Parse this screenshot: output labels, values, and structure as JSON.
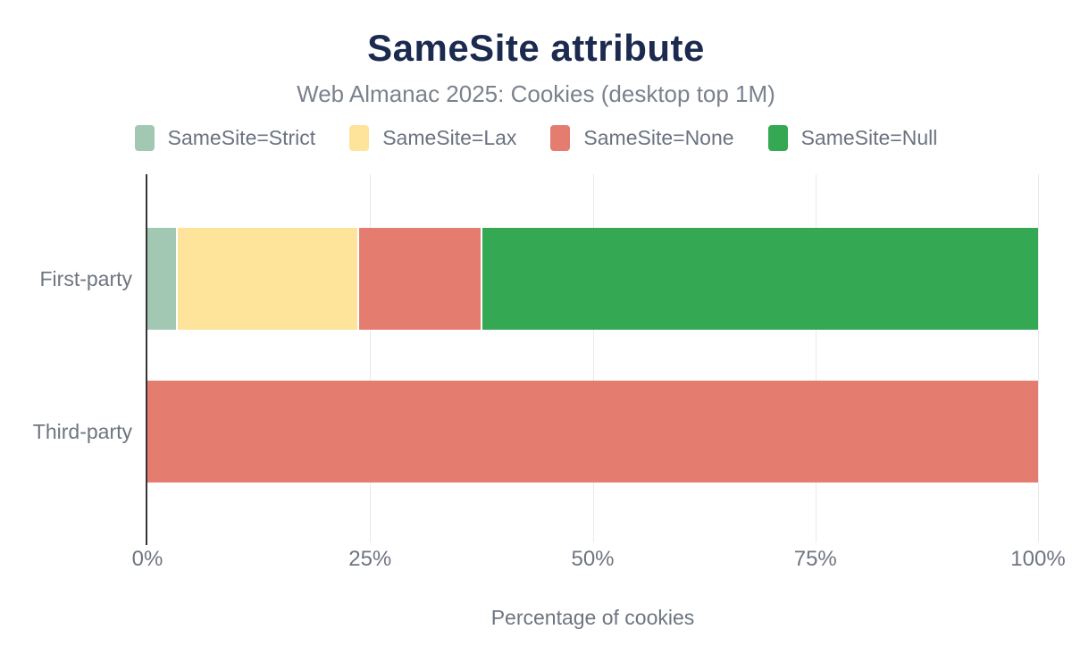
{
  "header": {
    "title": "SameSite attribute",
    "subtitle": "Web Almanac 2025: Cookies (desktop top 1M)"
  },
  "chart_data": {
    "type": "bar",
    "orientation": "horizontal",
    "stacked": true,
    "categories": [
      "First-party",
      "Third-party"
    ],
    "series": [
      {
        "name": "SameSite=Strict",
        "color": "#a2c8b3",
        "values": [
          3.2,
          0
        ]
      },
      {
        "name": "SameSite=Lax",
        "color": "#fde49a",
        "values": [
          20.4,
          0
        ]
      },
      {
        "name": "SameSite=None",
        "color": "#e57c70",
        "values": [
          13.8,
          100
        ]
      },
      {
        "name": "SameSite=Null",
        "color": "#34a853",
        "values": [
          62.6,
          0
        ]
      }
    ],
    "xlabel": "Percentage of cookies",
    "ylabel": "",
    "xlim": [
      0,
      100
    ],
    "x_ticks": [
      {
        "value": 0,
        "label": "0%"
      },
      {
        "value": 25,
        "label": "25%"
      },
      {
        "value": 50,
        "label": "50%"
      },
      {
        "value": 75,
        "label": "75%"
      },
      {
        "value": 100,
        "label": "100%"
      }
    ],
    "grid": "vertical",
    "legend_position": "top"
  },
  "colors": {
    "title": "#1b2a4e",
    "text_muted": "#6e7580",
    "axis_line": "#333333",
    "gridline": "#e9e9e9",
    "background": "#ffffff"
  }
}
